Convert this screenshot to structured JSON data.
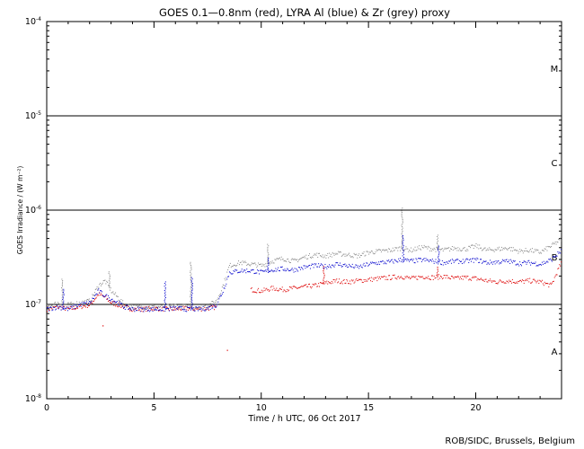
{
  "chart_data": {
    "type": "scatter",
    "title": "GOES 0.1—0.8nm (red), LYRA Al (blue) & Zr (grey) proxy",
    "xlabel": "Time / h UTC, 06 Oct 2017",
    "ylabel": "GOES Irradiance / (W m⁻²)",
    "credit": "ROB/SIDC, Brussels, Belgium",
    "x_range": [
      0,
      24
    ],
    "y_range": [
      1e-08,
      0.0001
    ],
    "y_scale": "log",
    "x_ticks": [
      0,
      5,
      10,
      15,
      20
    ],
    "x_tick_labels": [
      "0",
      "5",
      "10",
      "15",
      "20"
    ],
    "y_tick_base": "10",
    "y_ticks": [
      1e-08,
      1e-07,
      1e-06,
      1e-05,
      0.0001
    ],
    "y_tick_exponents": [
      "-8",
      "-7",
      "-6",
      "-5",
      "-4"
    ],
    "class_lines": [
      1e-07,
      1e-06,
      1e-05
    ],
    "class_labels": [
      {
        "label": "A",
        "y": 3.2e-08
      },
      {
        "label": "B",
        "y": 3.2e-07
      },
      {
        "label": "C",
        "y": 3.2e-06
      },
      {
        "label": "M",
        "y": 3.2e-05
      }
    ],
    "grid": false,
    "series": [
      {
        "name": "red",
        "color": "#dd0000",
        "x": [
          0,
          0.5,
          1,
          1.5,
          2,
          2.4,
          2.7,
          3,
          3.3,
          3.6,
          4,
          4.5,
          5,
          5.5,
          6,
          6.5,
          7,
          7.5,
          7.9,
          9.5,
          10,
          10.5,
          11,
          11.5,
          12,
          12.5,
          13,
          13.5,
          14,
          14.5,
          15,
          15.5,
          16,
          16.5,
          17,
          17.5,
          18,
          18.5,
          19,
          19.5,
          20,
          20.5,
          21,
          21.5,
          22,
          22.5,
          23,
          23.5,
          24
        ],
        "y": [
          9e-08,
          9.5e-08,
          9e-08,
          9.5e-08,
          1e-07,
          1.3e-07,
          1.2e-07,
          1.05e-07,
          1e-07,
          9.5e-08,
          9e-08,
          9e-08,
          9.2e-08,
          9e-08,
          9e-08,
          9.2e-08,
          9e-08,
          9.2e-08,
          9.5e-08,
          1.45e-07,
          1.4e-07,
          1.5e-07,
          1.45e-07,
          1.5e-07,
          1.55e-07,
          1.6e-07,
          1.7e-07,
          1.8e-07,
          1.75e-07,
          1.8e-07,
          1.85e-07,
          1.9e-07,
          1.95e-07,
          2e-07,
          1.9e-07,
          2e-07,
          1.95e-07,
          2e-07,
          1.9e-07,
          1.95e-07,
          1.9e-07,
          1.8e-07,
          1.75e-07,
          1.8e-07,
          1.75e-07,
          1.8e-07,
          1.75e-07,
          1.6e-07,
          2.9e-07
        ]
      },
      {
        "name": "blue",
        "color": "#0000cc",
        "x": [
          0,
          0.5,
          1,
          1.5,
          2,
          2.4,
          2.7,
          3,
          3.3,
          3.6,
          4,
          4.5,
          5,
          5.5,
          6,
          6.5,
          7,
          7.5,
          7.9,
          8.2,
          8.5,
          9,
          9.5,
          10,
          10.5,
          11,
          11.5,
          12,
          12.5,
          13,
          13.5,
          14,
          14.5,
          15,
          15.5,
          16,
          16.5,
          17,
          17.5,
          18,
          18.5,
          19,
          19.5,
          20,
          20.5,
          21,
          21.5,
          22,
          22.5,
          23,
          23.5,
          24
        ],
        "y": [
          9e-08,
          9.5e-08,
          9e-08,
          1e-07,
          1.05e-07,
          1.4e-07,
          1.25e-07,
          1.15e-07,
          1.05e-07,
          9.5e-08,
          9e-08,
          9e-08,
          9e-08,
          9e-08,
          9.2e-08,
          9e-08,
          9e-08,
          9.2e-08,
          1e-07,
          1.4e-07,
          2.2e-07,
          2.3e-07,
          2.3e-07,
          2.2e-07,
          2.35e-07,
          2.4e-07,
          2.35e-07,
          2.5e-07,
          2.6e-07,
          2.55e-07,
          2.7e-07,
          2.6e-07,
          2.5e-07,
          2.7e-07,
          2.8e-07,
          2.85e-07,
          3e-07,
          2.9e-07,
          3e-07,
          2.9e-07,
          2.8e-07,
          2.9e-07,
          2.9e-07,
          3e-07,
          2.8e-07,
          2.85e-07,
          2.9e-07,
          2.75e-07,
          2.8e-07,
          2.7e-07,
          3e-07,
          3.8e-07
        ]
      },
      {
        "name": "grey",
        "color": "#888888",
        "x": [
          0,
          0.5,
          1,
          1.5,
          2,
          2.4,
          2.7,
          3,
          3.3,
          3.6,
          4,
          4.5,
          5,
          5.5,
          6,
          6.5,
          7,
          7.5,
          7.9,
          8.2,
          8.5,
          9,
          9.5,
          10,
          10.5,
          11,
          11.5,
          12,
          12.5,
          13,
          13.5,
          14,
          14.5,
          15,
          15.5,
          16,
          16.5,
          17,
          17.5,
          18,
          18.5,
          19,
          19.5,
          20,
          20.5,
          21,
          21.5,
          22,
          22.5,
          23,
          23.5,
          24
        ],
        "y": [
          9.5e-08,
          1.05e-07,
          1e-07,
          1.05e-07,
          1.1e-07,
          1.6e-07,
          1.8e-07,
          1.4e-07,
          1.2e-07,
          1e-07,
          9.5e-08,
          9.5e-08,
          9.5e-08,
          9.5e-08,
          9.8e-08,
          9.5e-08,
          9.5e-08,
          9.8e-08,
          1.1e-07,
          1.6e-07,
          2.6e-07,
          2.8e-07,
          2.7e-07,
          2.6e-07,
          2.9e-07,
          3.1e-07,
          2.9e-07,
          3.2e-07,
          3.4e-07,
          3.3e-07,
          3.5e-07,
          3.4e-07,
          3.3e-07,
          3.6e-07,
          3.7e-07,
          3.8e-07,
          4e-07,
          3.8e-07,
          4.1e-07,
          3.9e-07,
          3.8e-07,
          4e-07,
          3.9e-07,
          4.2e-07,
          3.8e-07,
          3.9e-07,
          4e-07,
          3.7e-07,
          3.8e-07,
          3.6e-07,
          4.2e-07,
          5e-07
        ]
      }
    ],
    "peaks": [
      {
        "series": "grey",
        "x": 0.7,
        "y": 1.9e-07
      },
      {
        "series": "blue",
        "x": 0.75,
        "y": 1.5e-07
      },
      {
        "series": "grey",
        "x": 2.9,
        "y": 2.3e-07
      },
      {
        "series": "blue",
        "x": 5.5,
        "y": 1.8e-07
      },
      {
        "series": "grey",
        "x": 6.7,
        "y": 2.9e-07
      },
      {
        "series": "blue",
        "x": 6.75,
        "y": 2e-07
      },
      {
        "series": "blue",
        "x": 10.3,
        "y": 3.2e-07
      },
      {
        "series": "grey",
        "x": 10.3,
        "y": 4.4e-07
      },
      {
        "series": "red",
        "x": 12.9,
        "y": 2.6e-07
      },
      {
        "series": "grey",
        "x": 16.55,
        "y": 1.08e-06
      },
      {
        "series": "blue",
        "x": 16.6,
        "y": 5.5e-07
      },
      {
        "series": "grey",
        "x": 18.2,
        "y": 5.5e-07
      },
      {
        "series": "blue",
        "x": 18.25,
        "y": 4.2e-07
      },
      {
        "series": "red",
        "x": 18.2,
        "y": 2.6e-07
      },
      {
        "series": "red",
        "x": 2.6,
        "y": 6e-08
      },
      {
        "series": "red",
        "x": 8.4,
        "y": 3.3e-08
      }
    ]
  }
}
